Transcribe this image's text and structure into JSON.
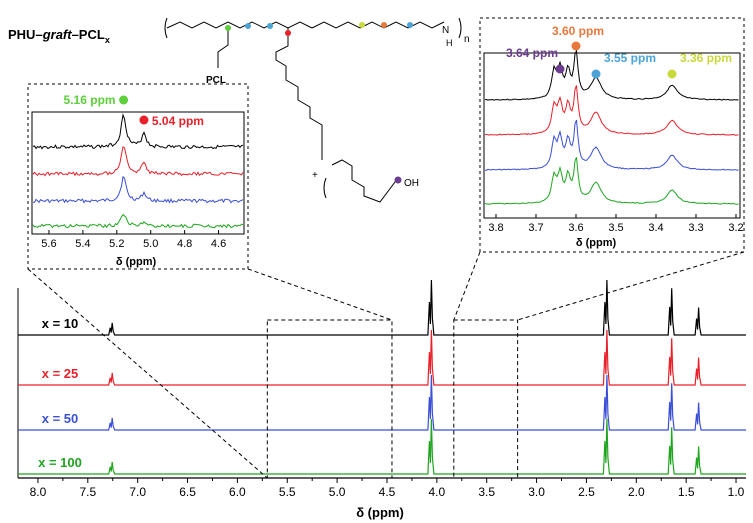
{
  "chart_data": {
    "type": "line",
    "title_parts": {
      "a": "PHU–",
      "b": "graft",
      "c": "–PCL",
      "sub": "x"
    },
    "xlabel": "δ (ppm)",
    "xlim": [
      8.2,
      0.9
    ],
    "xticks": [
      "8.0",
      "7.5",
      "7.0",
      "6.5",
      "6.0",
      "5.5",
      "5.0",
      "4.5",
      "4.0",
      "3.5",
      "3.0",
      "2.5",
      "2.0",
      "1.5",
      "1.0"
    ],
    "series": [
      {
        "name": "x = 10",
        "color": "#000000"
      },
      {
        "name": "x = 25",
        "color": "#e8202a"
      },
      {
        "name": "x = 50",
        "color": "#3a4fd6"
      },
      {
        "name": "x = 100",
        "color": "#1fa51f"
      }
    ],
    "main_peaks": [
      {
        "ppm": 7.26,
        "height": 0.22
      },
      {
        "ppm": 4.06,
        "height": 1.0
      },
      {
        "ppm": 2.3,
        "height": 1.0
      },
      {
        "ppm": 1.65,
        "height": 0.85
      },
      {
        "ppm": 1.38,
        "height": 0.5
      }
    ],
    "left_inset": {
      "xlabel": "δ (ppm)",
      "xlim": [
        5.7,
        4.45
      ],
      "xticks": [
        "5.6",
        "5.4",
        "5.2",
        "5.0",
        "4.8",
        "4.6"
      ],
      "annotations": [
        {
          "text": "5.16 ppm",
          "ppm": 5.16,
          "color": "#5ccf3a"
        },
        {
          "text": "5.04 ppm",
          "ppm": 5.04,
          "color": "#e8202a"
        }
      ]
    },
    "right_inset": {
      "xlabel": "δ (ppm)",
      "xlim": [
        3.83,
        3.19
      ],
      "xticks": [
        "3.8",
        "3.7",
        "3.6",
        "3.5",
        "3.4",
        "3.3",
        "3.2"
      ],
      "annotations": [
        {
          "text": "3.64 ppm",
          "ppm": 3.64,
          "color": "#6a3d8f"
        },
        {
          "text": "3.60 ppm",
          "ppm": 3.6,
          "color": "#e8783c"
        },
        {
          "text": "3.55 ppm",
          "ppm": 3.55,
          "color": "#4ba3d8"
        },
        {
          "text": "3.36 ppm",
          "ppm": 3.36,
          "color": "#c9d83a"
        }
      ]
    },
    "structure_labels": {
      "pcl": "PCL",
      "nh": "N",
      "h": "H",
      "n": "n",
      "oh": "OH",
      "plus": "+"
    }
  }
}
